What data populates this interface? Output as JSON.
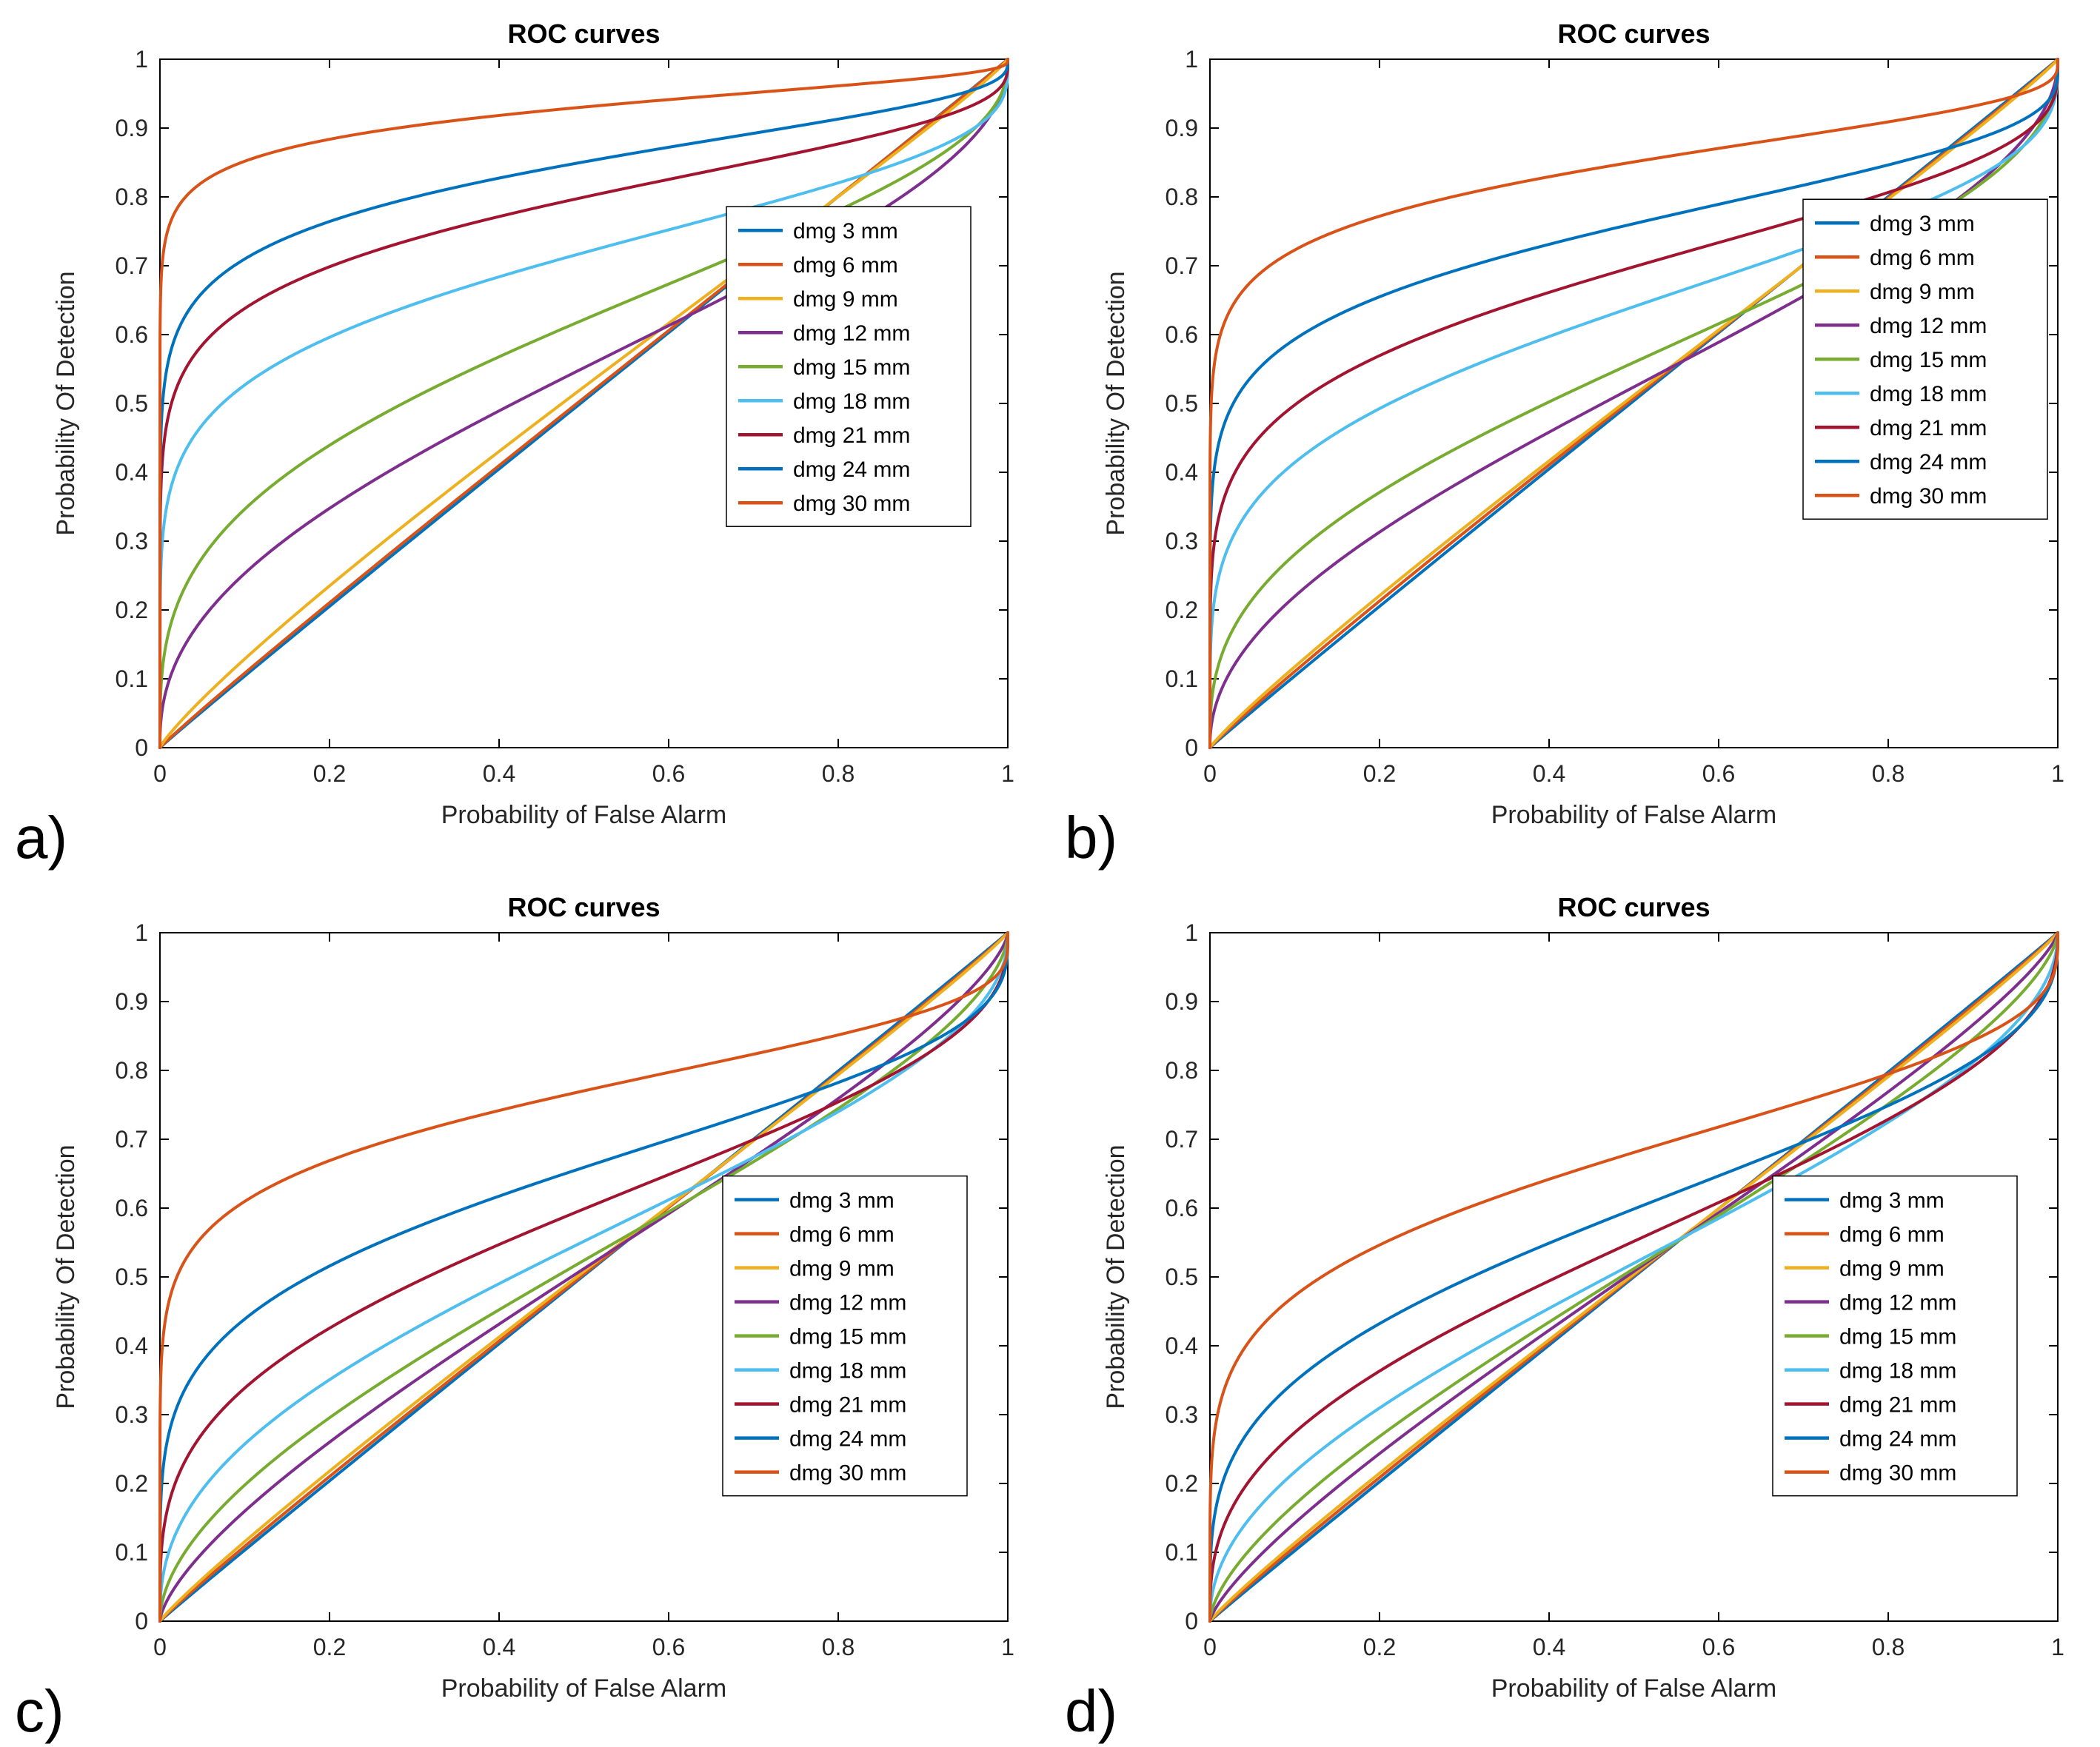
{
  "figure": {
    "background": "#ffffff",
    "axes_color": "#000000",
    "tick_label_color": "#262626",
    "curve_line_width": 4
  },
  "panels": [
    {
      "letter": "a)"
    },
    {
      "letter": "b)"
    },
    {
      "letter": "c)"
    },
    {
      "letter": "d)"
    }
  ],
  "chart_data": [
    {
      "id": "a",
      "type": "line",
      "title": "ROC curves",
      "xlabel": "Probability of False Alarm",
      "ylabel": "Probability Of Detection",
      "xlim": [
        0,
        1
      ],
      "ylim": [
        0,
        1
      ],
      "xticks": [
        0,
        0.2,
        0.4,
        0.6,
        0.8,
        1
      ],
      "xtick_labels": [
        "0",
        "0.2",
        "0.4",
        "0.6",
        "0.8",
        "1"
      ],
      "yticks": [
        0,
        0.1,
        0.2,
        0.3,
        0.4,
        0.5,
        0.6,
        0.7,
        0.8,
        0.9,
        1
      ],
      "ytick_labels": [
        "0",
        "0.1",
        "0.2",
        "0.3",
        "0.4",
        "0.5",
        "0.6",
        "0.7",
        "0.8",
        "0.9",
        "1"
      ],
      "grid": false,
      "legend": {
        "position": "right-center",
        "y_frac": 0.4,
        "right_inset": 50
      },
      "curve_model": "y = Phi(a + b*Phi_inv(x))  binormal ROC fit to the plotted curves",
      "sample_x": [
        0.02,
        0.1,
        0.2,
        0.5
      ],
      "series": [
        {
          "name": "dmg 3 mm",
          "color": "#0072BD",
          "a": 0.01,
          "b": 0.99,
          "sample_y": [
            0.02,
            0.1,
            0.21,
            0.5
          ]
        },
        {
          "name": "dmg 6 mm",
          "color": "#D95319",
          "a": 0.02,
          "b": 0.98,
          "sample_y": [
            0.02,
            0.11,
            0.21,
            0.51
          ]
        },
        {
          "name": "dmg 9 mm",
          "color": "#EDB120",
          "a": 0.06,
          "b": 0.93,
          "sample_y": [
            0.03,
            0.13,
            0.23,
            0.52
          ]
        },
        {
          "name": "dmg 12 mm",
          "color": "#7E2F8E",
          "a": 0.13,
          "b": 0.62,
          "sample_y": [
            0.13,
            0.25,
            0.35,
            0.55
          ]
        },
        {
          "name": "dmg 15 mm",
          "color": "#77AC30",
          "a": 0.31,
          "b": 0.55,
          "sample_y": [
            0.21,
            0.35,
            0.44,
            0.62
          ]
        },
        {
          "name": "dmg 18 mm",
          "color": "#4DBEEE",
          "a": 0.58,
          "b": 0.4,
          "sample_y": [
            0.4,
            0.53,
            0.6,
            0.72
          ]
        },
        {
          "name": "dmg 21 mm",
          "color": "#A2142F",
          "a": 0.84,
          "b": 0.38,
          "sample_y": [
            0.52,
            0.64,
            0.7,
            0.8
          ]
        },
        {
          "name": "dmg 24 mm",
          "color": "#0072BD",
          "a": 1.04,
          "b": 0.38,
          "sample_y": [
            0.6,
            0.71,
            0.76,
            0.85
          ]
        },
        {
          "name": "dmg 30 mm",
          "color": "#D95319",
          "a": 1.48,
          "b": 0.34,
          "sample_y": [
            0.78,
            0.85,
            0.88,
            0.93
          ]
        }
      ]
    },
    {
      "id": "b",
      "type": "line",
      "title": "ROC curves",
      "xlabel": "Probability of False Alarm",
      "ylabel": "Probability Of Detection",
      "xlim": [
        0,
        1
      ],
      "ylim": [
        0,
        1
      ],
      "xticks": [
        0,
        0.2,
        0.4,
        0.6,
        0.8,
        1
      ],
      "xtick_labels": [
        "0",
        "0.2",
        "0.4",
        "0.6",
        "0.8",
        "1"
      ],
      "yticks": [
        0,
        0.1,
        0.2,
        0.3,
        0.4,
        0.5,
        0.6,
        0.7,
        0.8,
        0.9,
        1
      ],
      "ytick_labels": [
        "0",
        "0.1",
        "0.2",
        "0.3",
        "0.4",
        "0.5",
        "0.6",
        "0.7",
        "0.8",
        "0.9",
        "1"
      ],
      "grid": false,
      "legend": {
        "position": "right-center",
        "y_frac": 0.38,
        "right_inset": 14
      },
      "curve_model": "y = Phi(a + b*Phi_inv(x))  binormal ROC fit to the plotted curves",
      "sample_x": [
        0.02,
        0.1,
        0.2,
        0.5
      ],
      "series": [
        {
          "name": "dmg 3 mm",
          "color": "#0072BD",
          "a": 0.01,
          "b": 0.99,
          "sample_y": [
            0.02,
            0.1,
            0.21,
            0.5
          ]
        },
        {
          "name": "dmg 6 mm",
          "color": "#D95319",
          "a": 0.02,
          "b": 0.97,
          "sample_y": [
            0.02,
            0.11,
            0.21,
            0.51
          ]
        },
        {
          "name": "dmg 9 mm",
          "color": "#EDB120",
          "a": 0.03,
          "b": 0.95,
          "sample_y": [
            0.03,
            0.12,
            0.22,
            0.51
          ]
        },
        {
          "name": "dmg 12 mm",
          "color": "#7E2F8E",
          "a": 0.06,
          "b": 0.65,
          "sample_y": [
            0.1,
            0.22,
            0.31,
            0.52
          ]
        },
        {
          "name": "dmg 15 mm",
          "color": "#77AC30",
          "a": 0.15,
          "b": 0.57,
          "sample_y": [
            0.15,
            0.28,
            0.37,
            0.56
          ]
        },
        {
          "name": "dmg 18 mm",
          "color": "#4DBEEE",
          "a": 0.36,
          "b": 0.45,
          "sample_y": [
            0.29,
            0.41,
            0.49,
            0.64
          ]
        },
        {
          "name": "dmg 21 mm",
          "color": "#A2142F",
          "a": 0.52,
          "b": 0.41,
          "sample_y": [
            0.37,
            0.5,
            0.57,
            0.7
          ]
        },
        {
          "name": "dmg 24 mm",
          "color": "#0072BD",
          "a": 0.71,
          "b": 0.37,
          "sample_y": [
            0.48,
            0.59,
            0.66,
            0.76
          ]
        },
        {
          "name": "dmg 30 mm",
          "color": "#D95319",
          "a": 1.04,
          "b": 0.35,
          "sample_y": [
            0.63,
            0.72,
            0.77,
            0.85
          ]
        }
      ]
    },
    {
      "id": "c",
      "type": "line",
      "title": "ROC curves",
      "xlabel": "Probability of False Alarm",
      "ylabel": "Probability Of Detection",
      "xlim": [
        0,
        1
      ],
      "ylim": [
        0,
        1
      ],
      "xticks": [
        0,
        0.2,
        0.4,
        0.6,
        0.8,
        1
      ],
      "xtick_labels": [
        "0",
        "0.2",
        "0.4",
        "0.6",
        "0.8",
        "1"
      ],
      "yticks": [
        0,
        0.1,
        0.2,
        0.3,
        0.4,
        0.5,
        0.6,
        0.7,
        0.8,
        0.9,
        1
      ],
      "ytick_labels": [
        "0",
        "0.1",
        "0.2",
        "0.3",
        "0.4",
        "0.5",
        "0.6",
        "0.7",
        "0.8",
        "0.9",
        "1"
      ],
      "grid": false,
      "legend": {
        "position": "right-lower",
        "y_frac": 0.66,
        "right_inset": 55
      },
      "curve_model": "y = Phi(a + b*Phi_inv(x))  binormal ROC fit to the plotted curves",
      "sample_x": [
        0.02,
        0.1,
        0.2,
        0.5
      ],
      "series": [
        {
          "name": "dmg 3 mm",
          "color": "#0072BD",
          "a": 0.005,
          "b": 0.99,
          "sample_y": [
            0.02,
            0.1,
            0.2,
            0.5
          ]
        },
        {
          "name": "dmg 6 mm",
          "color": "#D95319",
          "a": 0.01,
          "b": 0.97,
          "sample_y": [
            0.02,
            0.1,
            0.21,
            0.5
          ]
        },
        {
          "name": "dmg 9 mm",
          "color": "#EDB120",
          "a": 0.02,
          "b": 0.95,
          "sample_y": [
            0.03,
            0.12,
            0.22,
            0.51
          ]
        },
        {
          "name": "dmg 12 mm",
          "color": "#7E2F8E",
          "a": 0.03,
          "b": 0.8,
          "sample_y": [
            0.05,
            0.16,
            0.26,
            0.51
          ]
        },
        {
          "name": "dmg 15 mm",
          "color": "#77AC30",
          "a": 0.06,
          "b": 0.71,
          "sample_y": [
            0.08,
            0.2,
            0.3,
            0.52
          ]
        },
        {
          "name": "dmg 18 mm",
          "color": "#4DBEEE",
          "a": 0.13,
          "b": 0.61,
          "sample_y": [
            0.13,
            0.26,
            0.35,
            0.55
          ]
        },
        {
          "name": "dmg 21 mm",
          "color": "#A2142F",
          "a": 0.25,
          "b": 0.52,
          "sample_y": [
            0.21,
            0.34,
            0.43,
            0.6
          ]
        },
        {
          "name": "dmg 24 mm",
          "color": "#0072BD",
          "a": 0.41,
          "b": 0.44,
          "sample_y": [
            0.31,
            0.44,
            0.52,
            0.66
          ]
        },
        {
          "name": "dmg 30 mm",
          "color": "#D95319",
          "a": 0.74,
          "b": 0.36,
          "sample_y": [
            0.5,
            0.61,
            0.67,
            0.77
          ]
        }
      ]
    },
    {
      "id": "d",
      "type": "line",
      "title": "ROC curves",
      "xlabel": "Probability of False Alarm",
      "ylabel": "Probability Of Detection",
      "xlim": [
        0,
        1
      ],
      "ylim": [
        0,
        1
      ],
      "xticks": [
        0,
        0.2,
        0.4,
        0.6,
        0.8,
        1
      ],
      "xtick_labels": [
        "0",
        "0.2",
        "0.4",
        "0.6",
        "0.8",
        "1"
      ],
      "yticks": [
        0,
        0.1,
        0.2,
        0.3,
        0.4,
        0.5,
        0.6,
        0.7,
        0.8,
        0.9,
        1
      ],
      "ytick_labels": [
        "0",
        "0.1",
        "0.2",
        "0.3",
        "0.4",
        "0.5",
        "0.6",
        "0.7",
        "0.8",
        "0.9",
        "1"
      ],
      "grid": false,
      "legend": {
        "position": "right-lower",
        "y_frac": 0.66,
        "right_inset": 55
      },
      "curve_model": "y = Phi(a + b*Phi_inv(x))  binormal ROC fit to the plotted curves",
      "sample_x": [
        0.02,
        0.1,
        0.2,
        0.5
      ],
      "series": [
        {
          "name": "dmg 3 mm",
          "color": "#0072BD",
          "a": 0.0,
          "b": 0.99,
          "sample_y": [
            0.02,
            0.1,
            0.2,
            0.5
          ]
        },
        {
          "name": "dmg 6 mm",
          "color": "#D95319",
          "a": 0.005,
          "b": 0.97,
          "sample_y": [
            0.02,
            0.1,
            0.2,
            0.5
          ]
        },
        {
          "name": "dmg 9 mm",
          "color": "#EDB120",
          "a": 0.01,
          "b": 0.95,
          "sample_y": [
            0.03,
            0.11,
            0.21,
            0.5
          ]
        },
        {
          "name": "dmg 12 mm",
          "color": "#7E2F8E",
          "a": 0.02,
          "b": 0.85,
          "sample_y": [
            0.04,
            0.14,
            0.24,
            0.51
          ]
        },
        {
          "name": "dmg 15 mm",
          "color": "#77AC30",
          "a": 0.03,
          "b": 0.77,
          "sample_y": [
            0.06,
            0.17,
            0.27,
            0.51
          ]
        },
        {
          "name": "dmg 18 mm",
          "color": "#4DBEEE",
          "a": 0.05,
          "b": 0.65,
          "sample_y": [
            0.1,
            0.22,
            0.31,
            0.52
          ]
        },
        {
          "name": "dmg 21 mm",
          "color": "#A2142F",
          "a": 0.13,
          "b": 0.57,
          "sample_y": [
            0.15,
            0.27,
            0.36,
            0.55
          ]
        },
        {
          "name": "dmg 24 mm",
          "color": "#0072BD",
          "a": 0.25,
          "b": 0.5,
          "sample_y": [
            0.22,
            0.35,
            0.43,
            0.6
          ]
        },
        {
          "name": "dmg 30 mm",
          "color": "#D95319",
          "a": 0.47,
          "b": 0.42,
          "sample_y": [
            0.35,
            0.47,
            0.55,
            0.68
          ]
        }
      ]
    }
  ]
}
